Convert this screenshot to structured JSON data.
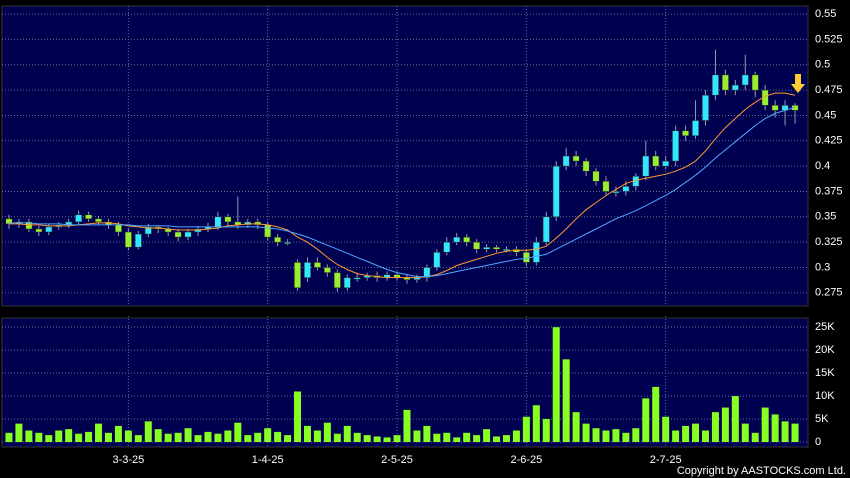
{
  "chart_data": [
    {
      "type": "candlestick",
      "up_color": "#33e6ff",
      "down_color": "#99ee33",
      "ylim": [
        0.263,
        0.556
      ],
      "yticks": [
        0.275,
        0.3,
        0.325,
        0.35,
        0.375,
        0.4,
        0.425,
        0.45,
        0.475,
        0.5,
        0.525,
        0.55
      ],
      "grid": true,
      "open": [
        0.348,
        0.343,
        0.345,
        0.338,
        0.335,
        0.34,
        0.342,
        0.345,
        0.352,
        0.348,
        0.345,
        0.342,
        0.335,
        0.32,
        0.333,
        0.34,
        0.338,
        0.335,
        0.33,
        0.335,
        0.338,
        0.34,
        0.35,
        0.345,
        0.342,
        0.345,
        0.342,
        0.33,
        0.325,
        0.305,
        0.29,
        0.305,
        0.3,
        0.295,
        0.28,
        0.29,
        0.29,
        0.292,
        0.29,
        0.293,
        0.29,
        0.288,
        0.29,
        0.3,
        0.315,
        0.325,
        0.33,
        0.325,
        0.318,
        0.32,
        0.318,
        0.318,
        0.315,
        0.305,
        0.325,
        0.35,
        0.4,
        0.41,
        0.405,
        0.395,
        0.385,
        0.375,
        0.375,
        0.38,
        0.39,
        0.41,
        0.4,
        0.405,
        0.435,
        0.43,
        0.445,
        0.47,
        0.49,
        0.475,
        0.48,
        0.49,
        0.475,
        0.46,
        0.455,
        0.46
      ],
      "high": [
        0.352,
        0.348,
        0.348,
        0.341,
        0.343,
        0.345,
        0.348,
        0.356,
        0.355,
        0.351,
        0.348,
        0.345,
        0.338,
        0.336,
        0.343,
        0.342,
        0.34,
        0.338,
        0.338,
        0.341,
        0.344,
        0.355,
        0.353,
        0.37,
        0.348,
        0.348,
        0.345,
        0.333,
        0.328,
        0.308,
        0.31,
        0.31,
        0.303,
        0.298,
        0.293,
        0.295,
        0.295,
        0.296,
        0.296,
        0.296,
        0.293,
        0.293,
        0.303,
        0.318,
        0.33,
        0.334,
        0.333,
        0.328,
        0.323,
        0.322,
        0.321,
        0.321,
        0.318,
        0.33,
        0.355,
        0.405,
        0.418,
        0.415,
        0.408,
        0.398,
        0.39,
        0.38,
        0.385,
        0.393,
        0.425,
        0.415,
        0.41,
        0.44,
        0.44,
        0.465,
        0.475,
        0.515,
        0.495,
        0.485,
        0.51,
        0.493,
        0.48,
        0.465,
        0.465,
        0.462
      ],
      "low": [
        0.338,
        0.339,
        0.335,
        0.331,
        0.332,
        0.337,
        0.339,
        0.342,
        0.345,
        0.342,
        0.338,
        0.331,
        0.317,
        0.318,
        0.33,
        0.334,
        0.331,
        0.326,
        0.327,
        0.331,
        0.335,
        0.337,
        0.341,
        0.338,
        0.339,
        0.338,
        0.327,
        0.321,
        0.322,
        0.277,
        0.286,
        0.297,
        0.291,
        0.276,
        0.277,
        0.286,
        0.287,
        0.286,
        0.287,
        0.287,
        0.284,
        0.285,
        0.286,
        0.297,
        0.312,
        0.322,
        0.321,
        0.314,
        0.315,
        0.315,
        0.315,
        0.311,
        0.301,
        0.302,
        0.322,
        0.346,
        0.396,
        0.4,
        0.39,
        0.381,
        0.371,
        0.37,
        0.371,
        0.376,
        0.386,
        0.396,
        0.397,
        0.4,
        0.425,
        0.427,
        0.44,
        0.465,
        0.47,
        0.47,
        0.475,
        0.468,
        0.455,
        0.448,
        0.44,
        0.442
      ],
      "close": [
        0.343,
        0.345,
        0.338,
        0.335,
        0.34,
        0.342,
        0.345,
        0.352,
        0.348,
        0.345,
        0.342,
        0.335,
        0.32,
        0.333,
        0.34,
        0.338,
        0.335,
        0.33,
        0.335,
        0.338,
        0.34,
        0.35,
        0.345,
        0.342,
        0.345,
        0.342,
        0.33,
        0.325,
        0.325,
        0.28,
        0.305,
        0.3,
        0.295,
        0.28,
        0.29,
        0.29,
        0.292,
        0.29,
        0.293,
        0.29,
        0.288,
        0.29,
        0.3,
        0.315,
        0.325,
        0.33,
        0.325,
        0.318,
        0.32,
        0.318,
        0.318,
        0.315,
        0.305,
        0.325,
        0.35,
        0.4,
        0.41,
        0.405,
        0.395,
        0.385,
        0.375,
        0.375,
        0.38,
        0.39,
        0.41,
        0.4,
        0.405,
        0.435,
        0.43,
        0.445,
        0.47,
        0.49,
        0.475,
        0.48,
        0.49,
        0.475,
        0.46,
        0.455,
        0.46,
        0.455
      ],
      "lines": [
        {
          "color": "#ff9933",
          "values": [
            0.343,
            0.343,
            0.342,
            0.342,
            0.341,
            0.341,
            0.341,
            0.342,
            0.343,
            0.344,
            0.344,
            0.343,
            0.341,
            0.34,
            0.339,
            0.339,
            0.338,
            0.337,
            0.337,
            0.337,
            0.338,
            0.339,
            0.341,
            0.342,
            0.343,
            0.343,
            0.342,
            0.34,
            0.337,
            0.33,
            0.325,
            0.318,
            0.31,
            0.303,
            0.298,
            0.294,
            0.292,
            0.291,
            0.29,
            0.29,
            0.29,
            0.29,
            0.291,
            0.293,
            0.297,
            0.302,
            0.305,
            0.308,
            0.311,
            0.314,
            0.316,
            0.317,
            0.317,
            0.318,
            0.321,
            0.329,
            0.338,
            0.348,
            0.357,
            0.364,
            0.371,
            0.377,
            0.383,
            0.386,
            0.388,
            0.39,
            0.392,
            0.395,
            0.399,
            0.405,
            0.415,
            0.427,
            0.438,
            0.447,
            0.456,
            0.463,
            0.469,
            0.472,
            0.472,
            0.47
          ]
        },
        {
          "color": "#4fa8ff",
          "values": [
            0.344,
            0.344,
            0.344,
            0.343,
            0.343,
            0.343,
            0.342,
            0.342,
            0.342,
            0.342,
            0.342,
            0.342,
            0.342,
            0.341,
            0.341,
            0.341,
            0.341,
            0.34,
            0.34,
            0.34,
            0.34,
            0.34,
            0.34,
            0.34,
            0.34,
            0.34,
            0.339,
            0.338,
            0.336,
            0.333,
            0.33,
            0.326,
            0.322,
            0.318,
            0.314,
            0.31,
            0.306,
            0.302,
            0.298,
            0.295,
            0.293,
            0.291,
            0.291,
            0.292,
            0.294,
            0.296,
            0.298,
            0.3,
            0.302,
            0.304,
            0.306,
            0.308,
            0.309,
            0.311,
            0.313,
            0.318,
            0.323,
            0.328,
            0.333,
            0.338,
            0.343,
            0.348,
            0.352,
            0.356,
            0.361,
            0.366,
            0.371,
            0.377,
            0.384,
            0.391,
            0.399,
            0.408,
            0.416,
            0.424,
            0.432,
            0.44,
            0.447,
            0.452,
            0.455,
            0.458
          ]
        }
      ]
    },
    {
      "type": "bar",
      "color": "#88ff22",
      "values": [
        2000,
        4000,
        2500,
        2000,
        1500,
        2500,
        2800,
        1800,
        2200,
        4000,
        2000,
        3500,
        2500,
        1500,
        4500,
        2800,
        1800,
        2000,
        3000,
        1500,
        2200,
        1800,
        2500,
        4200,
        1500,
        2000,
        3000,
        2200,
        1500,
        11000,
        3500,
        2500,
        4200,
        1800,
        3500,
        2000,
        1500,
        1200,
        1000,
        1500,
        7000,
        2500,
        3500,
        1800,
        2000,
        1000,
        2000,
        1500,
        2800,
        1200,
        1500,
        2500,
        5500,
        8000,
        5000,
        25000,
        18000,
        6500,
        4000,
        3000,
        2500,
        2800,
        2000,
        3000,
        9500,
        12000,
        5500,
        2500,
        3500,
        4000,
        2500,
        6500,
        7500,
        10000,
        4000,
        2000,
        7500,
        6000,
        4500,
        4000
      ],
      "ylim": [
        0,
        27000
      ],
      "yticks": [
        0,
        {
          "value": 5000,
          "label": "5K"
        },
        {
          "value": 10000,
          "label": "10K"
        },
        {
          "value": 15000,
          "label": "15K"
        },
        {
          "value": 20000,
          "label": "20K"
        },
        {
          "value": 25000,
          "label": "25K"
        }
      ],
      "xticks": [
        {
          "value": 12,
          "label": "3-3-25"
        },
        {
          "value": 26,
          "label": "1-4-25"
        },
        {
          "value": 39,
          "label": "2-5-25"
        },
        {
          "value": 52,
          "label": "2-6-25"
        },
        {
          "value": 66,
          "label": "2-7-25"
        }
      ],
      "grid": true
    }
  ],
  "footer": "Copyright by AASTOCKS.com Ltd."
}
